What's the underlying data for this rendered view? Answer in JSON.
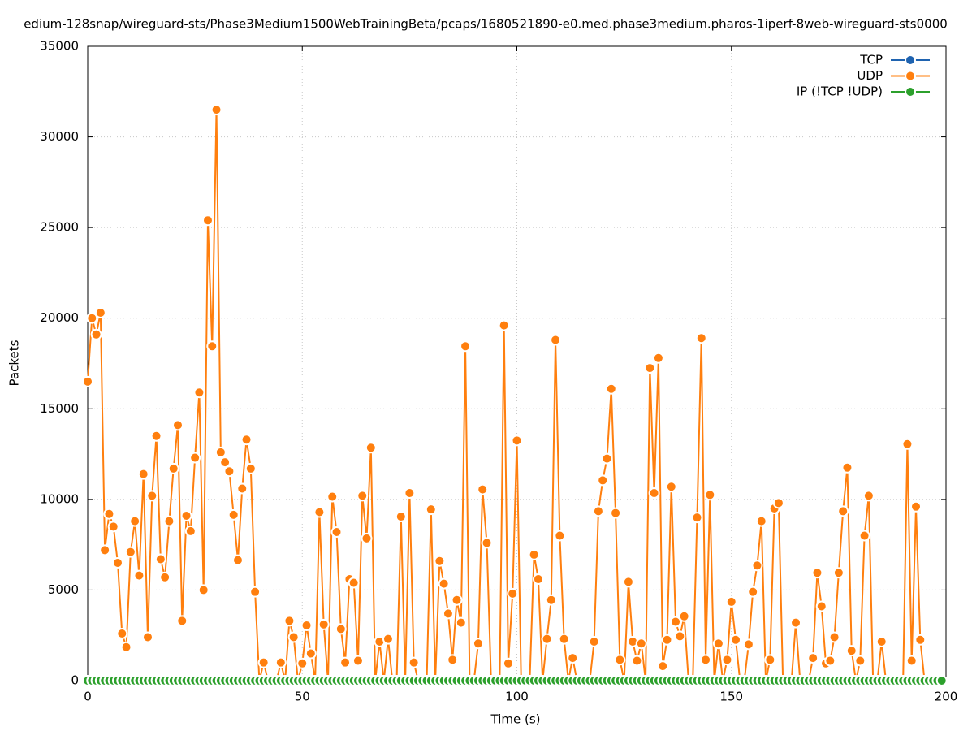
{
  "chart_data": {
    "type": "line",
    "title": "edium-128snap/wireguard-sts/Phase3Medium1500WebTrainingBeta/pcaps/1680521890-e0.med.phase3medium.pharos-1iperf-8web-wireguard-sts0000",
    "x_label": "Time (s)",
    "y_label": "Packets",
    "xlim": [
      0,
      200
    ],
    "xticks": [
      0,
      50,
      100,
      150,
      200
    ],
    "ylim": [
      0,
      35000
    ],
    "yticks": [
      0,
      5000,
      10000,
      15000,
      20000,
      25000,
      30000,
      35000
    ],
    "grid": true,
    "legend": "top-right",
    "x": [
      0,
      1,
      2,
      3,
      4,
      5,
      6,
      7,
      8,
      9,
      10,
      11,
      12,
      13,
      14,
      15,
      16,
      17,
      18,
      19,
      20,
      21,
      22,
      23,
      24,
      25,
      26,
      27,
      28,
      29,
      30,
      31,
      32,
      33,
      34,
      35,
      36,
      37,
      38,
      39,
      40,
      41,
      42,
      43,
      44,
      45,
      46,
      47,
      48,
      49,
      50,
      51,
      52,
      53,
      54,
      55,
      56,
      57,
      58,
      59,
      60,
      61,
      62,
      63,
      64,
      65,
      66,
      67,
      68,
      69,
      70,
      71,
      72,
      73,
      74,
      75,
      76,
      77,
      78,
      79,
      80,
      81,
      82,
      83,
      84,
      85,
      86,
      87,
      88,
      89,
      90,
      91,
      92,
      93,
      94,
      95,
      96,
      97,
      98,
      99,
      100,
      101,
      102,
      103,
      104,
      105,
      106,
      107,
      108,
      109,
      110,
      111,
      112,
      113,
      114,
      115,
      116,
      117,
      118,
      119,
      120,
      121,
      122,
      123,
      124,
      125,
      126,
      127,
      128,
      129,
      130,
      131,
      132,
      133,
      134,
      135,
      136,
      137,
      138,
      139,
      140,
      141,
      142,
      143,
      144,
      145,
      146,
      147,
      148,
      149,
      150,
      151,
      152,
      153,
      154,
      155,
      156,
      157,
      158,
      159,
      160,
      161,
      162,
      163,
      164,
      165,
      166,
      167,
      168,
      169,
      170,
      171,
      172,
      173,
      174,
      175,
      176,
      177,
      178,
      179,
      180,
      181,
      182,
      183,
      184,
      185,
      186,
      187,
      188,
      189,
      190,
      191,
      192,
      193,
      194,
      195,
      196,
      197,
      198,
      199
    ],
    "series": [
      {
        "name": "TCP",
        "color": "#1f63b0",
        "values": [
          0,
          0,
          0,
          0,
          0,
          0,
          0,
          0,
          0,
          0,
          0,
          0,
          0,
          0,
          0,
          0,
          0,
          0,
          0,
          0,
          0,
          0,
          0,
          0,
          0,
          0,
          0,
          0,
          0,
          0,
          0,
          0,
          0,
          0,
          0,
          0,
          0,
          0,
          0,
          0,
          0,
          0,
          0,
          0,
          0,
          0,
          0,
          0,
          0,
          0,
          0,
          0,
          0,
          0,
          0,
          0,
          0,
          0,
          0,
          0,
          0,
          0,
          0,
          0,
          0,
          0,
          0,
          0,
          0,
          0,
          0,
          0,
          0,
          0,
          0,
          0,
          0,
          0,
          0,
          0,
          0,
          0,
          0,
          0,
          0,
          0,
          0,
          0,
          0,
          0,
          0,
          0,
          0,
          0,
          0,
          0,
          0,
          0,
          0,
          0,
          0,
          0,
          0,
          0,
          0,
          0,
          0,
          0,
          0,
          0,
          0,
          0,
          0,
          0,
          0,
          0,
          0,
          0,
          0,
          0,
          0,
          0,
          0,
          0,
          0,
          0,
          0,
          0,
          0,
          0,
          0,
          0,
          0,
          0,
          0,
          0,
          0,
          0,
          0,
          0,
          0,
          0,
          0,
          0,
          0,
          0,
          0,
          0,
          0,
          0,
          0,
          0,
          0,
          0,
          0,
          0,
          0,
          0,
          0,
          0,
          0,
          0,
          0,
          0,
          0,
          0,
          0,
          0,
          0,
          0,
          0,
          0,
          0,
          0,
          0,
          0,
          0,
          0,
          0,
          0,
          0,
          0,
          0,
          0,
          0,
          0,
          0,
          0,
          0,
          0,
          0,
          0,
          0,
          0,
          0,
          0,
          0,
          0,
          0,
          0
        ]
      },
      {
        "name": "UDP",
        "color": "#ff7f0e",
        "values": [
          16500,
          20000,
          19100,
          20300,
          7200,
          9200,
          8500,
          6500,
          2600,
          1850,
          7100,
          8800,
          5800,
          11400,
          2400,
          10200,
          13500,
          6700,
          5700,
          8800,
          11700,
          14100,
          3300,
          9100,
          8250,
          12300,
          15900,
          5000,
          25400,
          18450,
          31500,
          12600,
          12050,
          11550,
          9150,
          6650,
          10600,
          13300,
          11700,
          4900,
          0,
          1000,
          0,
          0,
          0,
          1000,
          0,
          3300,
          2400,
          0,
          950,
          3050,
          1500,
          0,
          9300,
          3100,
          0,
          10150,
          8200,
          2850,
          1000,
          5600,
          5400,
          1100,
          10200,
          7850,
          12850,
          0,
          2150,
          0,
          2300,
          0,
          0,
          9050,
          0,
          10350,
          1000,
          0,
          0,
          0,
          9450,
          0,
          6600,
          5350,
          3700,
          1150,
          4450,
          3200,
          18450,
          0,
          0,
          2050,
          10550,
          7600,
          0,
          0,
          0,
          19600,
          950,
          4800,
          13250,
          0,
          0,
          0,
          6950,
          5600,
          0,
          2300,
          4450,
          18800,
          8000,
          2300,
          0,
          1250,
          0,
          0,
          0,
          0,
          2150,
          9350,
          11050,
          12250,
          16100,
          9250,
          1150,
          0,
          5450,
          2150,
          1100,
          2050,
          0,
          17250,
          10350,
          17800,
          800,
          2250,
          10700,
          3250,
          2450,
          3550,
          0,
          0,
          9000,
          18900,
          1150,
          10250,
          0,
          2050,
          0,
          1150,
          4350,
          2250,
          0,
          0,
          2000,
          4900,
          6350,
          8800,
          0,
          1150,
          9500,
          9800,
          0,
          0,
          0,
          3200,
          0,
          0,
          0,
          1250,
          5950,
          4100,
          950,
          1100,
          2400,
          5950,
          9350,
          11750,
          1650,
          0,
          1100,
          8000,
          10200,
          0,
          0,
          2150,
          0,
          0,
          0,
          0,
          0,
          13050,
          1100,
          9600,
          2250,
          0,
          null,
          null,
          null,
          null
        ]
      },
      {
        "name": "IP (!TCP  !UDP)",
        "color": "#2ca02c",
        "values": [
          0,
          0,
          0,
          0,
          0,
          0,
          0,
          0,
          0,
          0,
          0,
          0,
          0,
          0,
          0,
          0,
          0,
          0,
          0,
          0,
          0,
          0,
          0,
          0,
          0,
          0,
          0,
          0,
          0,
          0,
          0,
          0,
          0,
          0,
          0,
          0,
          0,
          0,
          0,
          0,
          0,
          0,
          0,
          0,
          0,
          0,
          0,
          0,
          0,
          0,
          0,
          0,
          0,
          0,
          0,
          0,
          0,
          0,
          0,
          0,
          0,
          0,
          0,
          0,
          0,
          0,
          0,
          0,
          0,
          0,
          0,
          0,
          0,
          0,
          0,
          0,
          0,
          0,
          0,
          0,
          0,
          0,
          0,
          0,
          0,
          0,
          0,
          0,
          0,
          0,
          0,
          0,
          0,
          0,
          0,
          0,
          0,
          0,
          0,
          0,
          0,
          0,
          0,
          0,
          0,
          0,
          0,
          0,
          0,
          0,
          0,
          0,
          0,
          0,
          0,
          0,
          0,
          0,
          0,
          0,
          0,
          0,
          0,
          0,
          0,
          0,
          0,
          0,
          0,
          0,
          0,
          0,
          0,
          0,
          0,
          0,
          0,
          0,
          0,
          0,
          0,
          0,
          0,
          0,
          0,
          0,
          0,
          0,
          0,
          0,
          0,
          0,
          0,
          0,
          0,
          0,
          0,
          0,
          0,
          0,
          0,
          0,
          0,
          0,
          0,
          0,
          0,
          0,
          0,
          0,
          0,
          0,
          0,
          0,
          0,
          0,
          0,
          0,
          0,
          0,
          0,
          0,
          0,
          0,
          0,
          0,
          0,
          0,
          0,
          0,
          0,
          0,
          0,
          0,
          0,
          0,
          0,
          0,
          0,
          0
        ]
      }
    ]
  }
}
